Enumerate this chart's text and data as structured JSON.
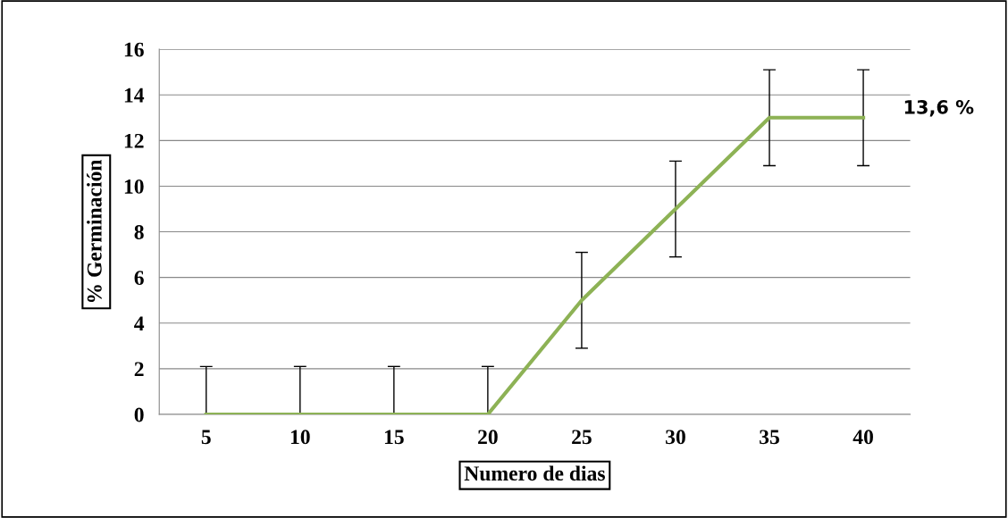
{
  "chart_data": {
    "type": "line",
    "xlabel": "Numero de dias",
    "ylabel": "% Germinación",
    "categories": [
      "5",
      "10",
      "15",
      "20",
      "25",
      "30",
      "35",
      "40"
    ],
    "series": [
      {
        "color": "#8db255",
        "values": [
          0,
          0,
          0,
          0,
          5,
          9,
          13,
          13
        ],
        "errors": [
          2.1,
          2.1,
          2.1,
          2.1,
          2.1,
          2.1,
          2.1,
          2.1
        ]
      }
    ],
    "ylim": [
      0,
      16
    ],
    "yticks": [
      0,
      2,
      4,
      6,
      8,
      10,
      12,
      14,
      16
    ],
    "grid": "y",
    "legend": false,
    "marker": "none",
    "line_style": "solid",
    "annotations": [
      {
        "text": "13,6 %",
        "x": "40",
        "y": 13
      }
    ]
  }
}
